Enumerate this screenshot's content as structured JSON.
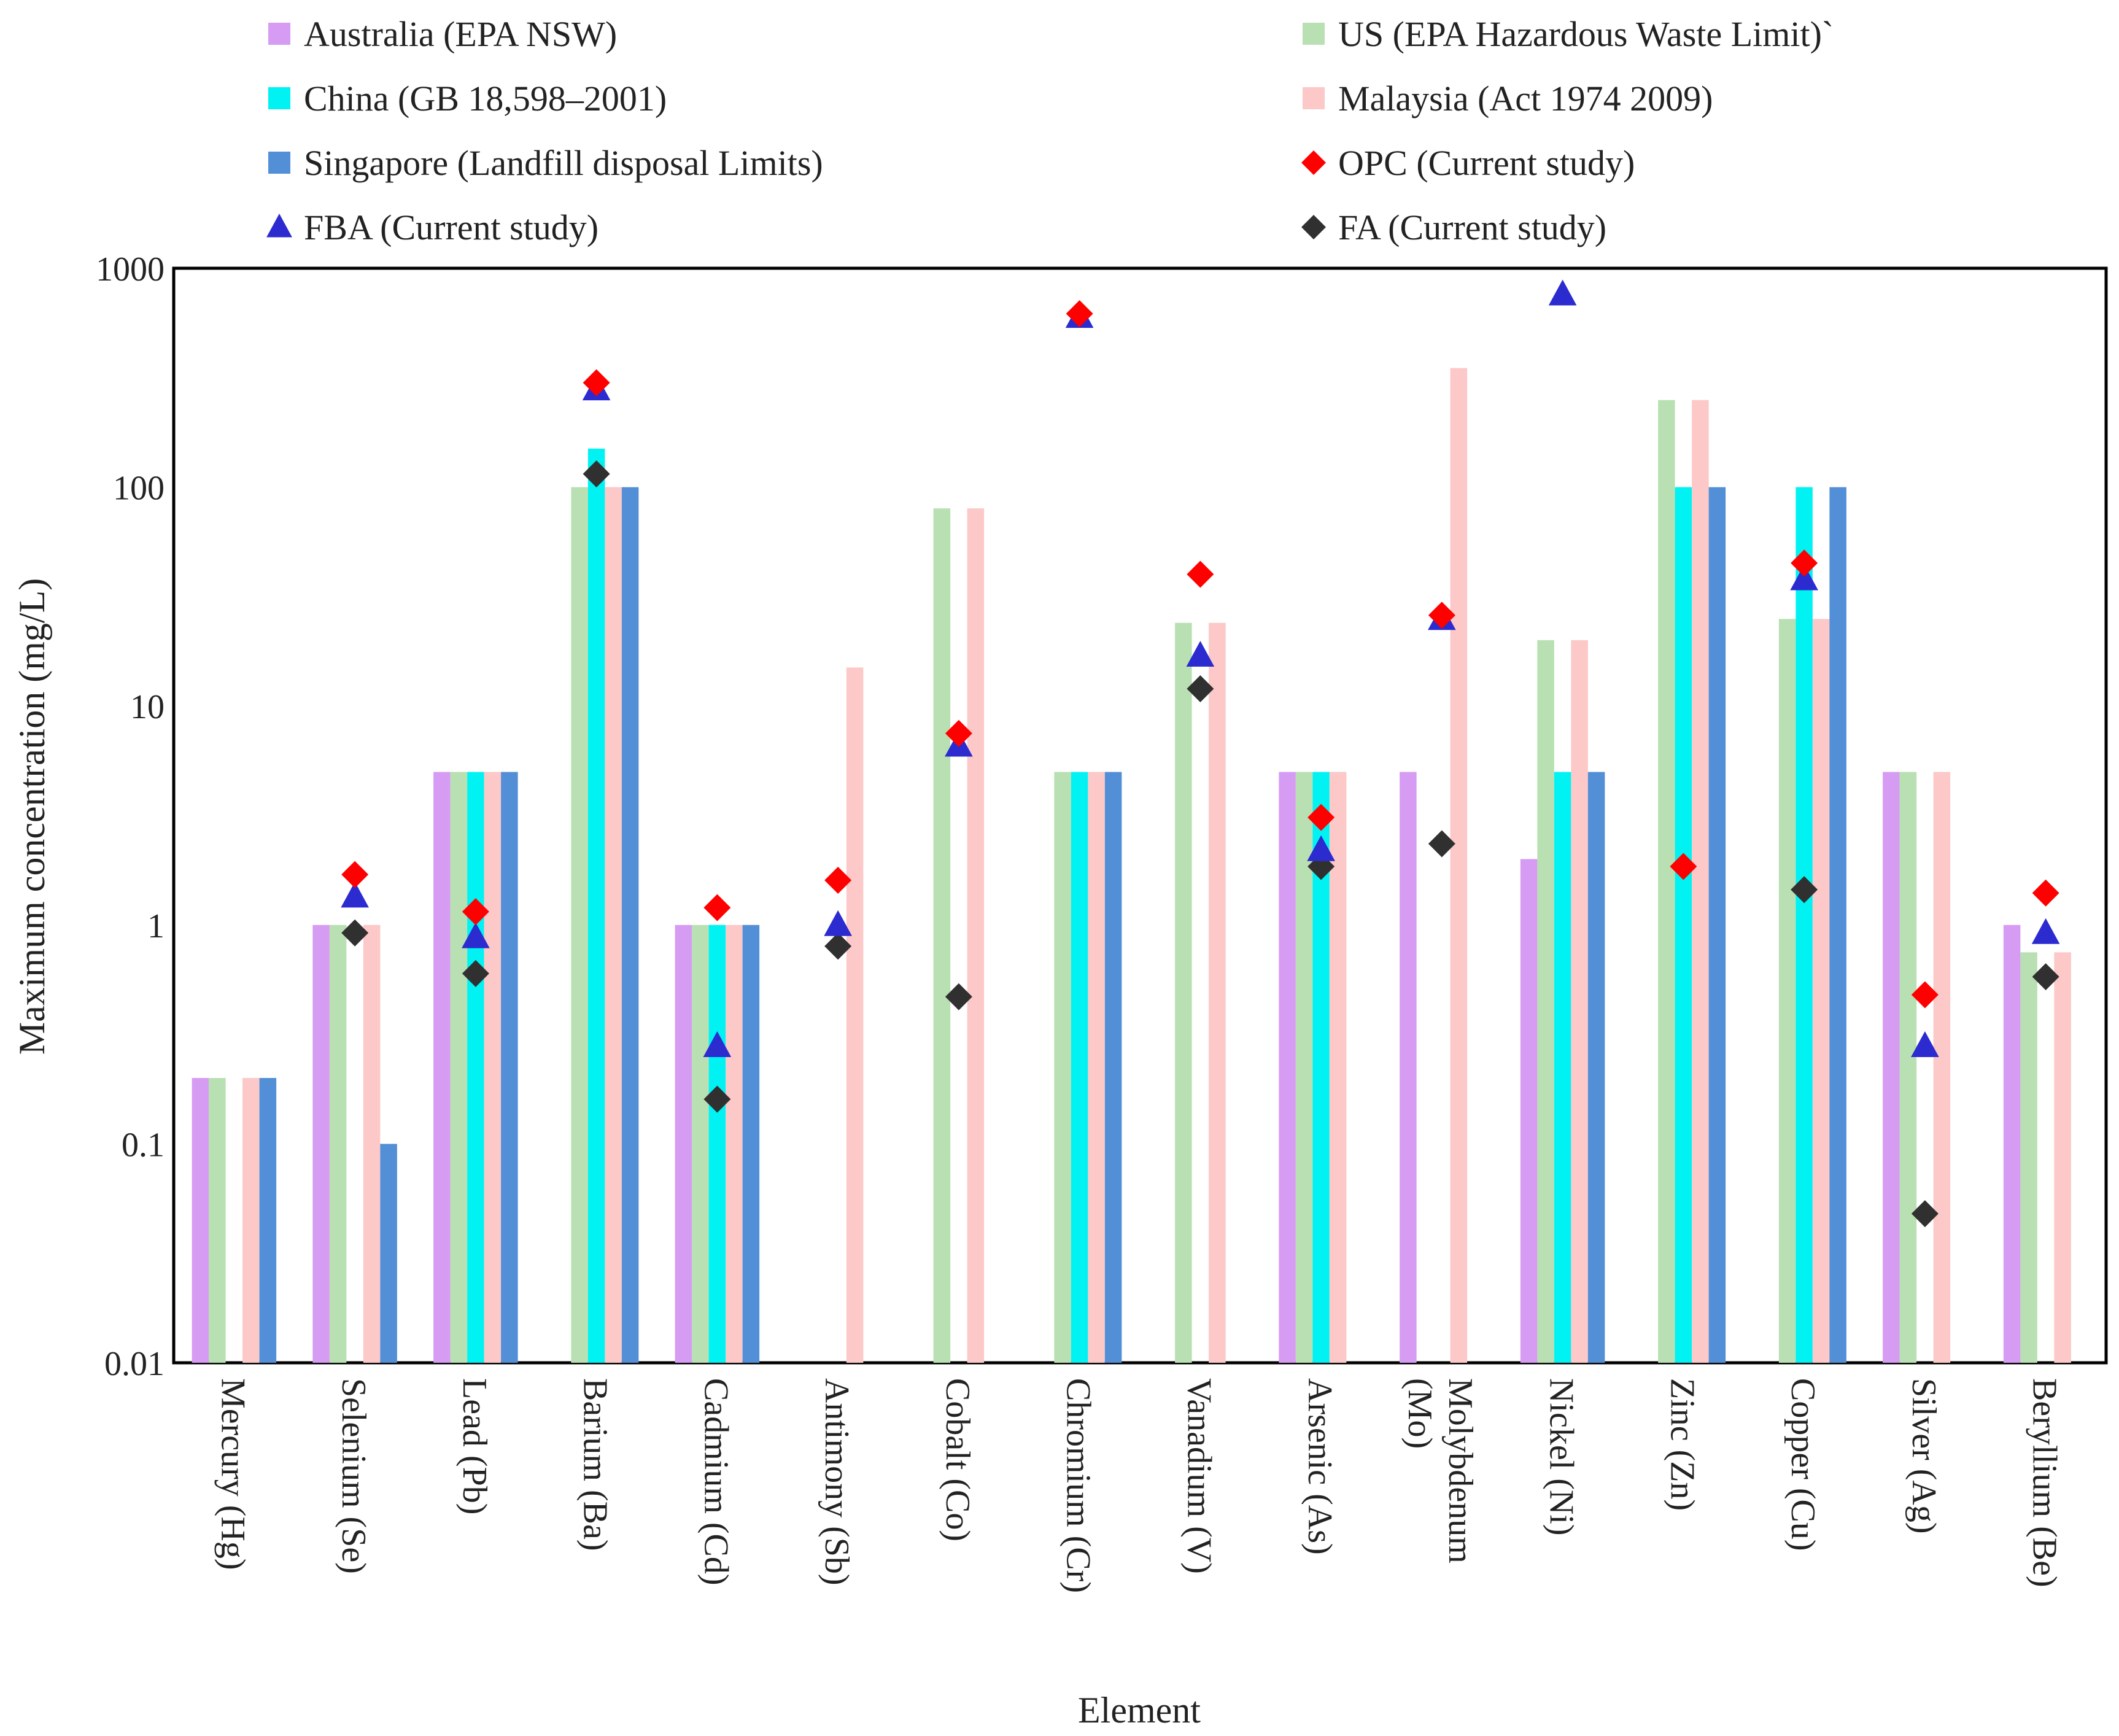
{
  "chart_data": {
    "type": "bar",
    "title": "",
    "xlabel": "Element",
    "ylabel": "Maximum concentration (mg/L)",
    "yscale": "log",
    "ylim": [
      0.01,
      1000
    ],
    "yticks": [
      "0.01",
      "0.1",
      "1",
      "10",
      "100",
      "1000"
    ],
    "categories": [
      "Mercury (Hg)",
      "Selenium (Se)",
      "Lead (Pb)",
      "Barium (Ba)",
      "Cadmium (Cd)",
      "Antimony (Sb)",
      "Cobalt (Co)",
      "Chromium (Cr)",
      "Vanadium (V)",
      "Arsenic (As)",
      "Molybdenum (Mo)",
      "Nickel (Ni)",
      "Zinc (Zn)",
      "Copper (Cu)",
      "Silver (Ag)",
      "Beryllium (Be)"
    ],
    "series": [
      {
        "name": "Australia (EPA NSW)",
        "kind": "bar",
        "color": "#d69bf3",
        "values": [
          0.2,
          1,
          5,
          null,
          1,
          null,
          null,
          null,
          null,
          5,
          5,
          2,
          null,
          null,
          5,
          1
        ]
      },
      {
        "name": "US (EPA Hazardous Waste Limit)`",
        "kind": "bar",
        "color": "#b9e0b2",
        "values": [
          0.2,
          1,
          5,
          100,
          1,
          null,
          80,
          5,
          24,
          5,
          null,
          20,
          250,
          25,
          5,
          0.75
        ]
      },
      {
        "name": "China (GB 18,598–2001)",
        "kind": "bar",
        "color": "#00f2f2",
        "values": [
          null,
          null,
          5,
          150,
          1,
          null,
          null,
          5,
          null,
          5,
          null,
          5,
          100,
          100,
          null,
          null
        ]
      },
      {
        "name": "Malaysia (Act 1974 2009)",
        "kind": "bar",
        "color": "#fcc8c8",
        "values": [
          0.2,
          1,
          5,
          100,
          1,
          15,
          80,
          5,
          24,
          5,
          350,
          20,
          250,
          25,
          5,
          0.75
        ]
      },
      {
        "name": "Singapore (Landfill disposal Limits)",
        "kind": "bar",
        "color": "#538fd7",
        "values": [
          0.2,
          0.1,
          5,
          100,
          1,
          null,
          null,
          5,
          null,
          null,
          null,
          5,
          100,
          100,
          null,
          null
        ]
      },
      {
        "name": "OPC (Current study)",
        "kind": "marker",
        "marker": "diamond",
        "color": "#ff0000",
        "values": [
          null,
          1.7,
          1.15,
          300,
          1.2,
          1.6,
          7.5,
          620,
          40,
          3.1,
          26,
          null,
          1.85,
          45,
          0.48,
          1.4
        ]
      },
      {
        "name": "FBA (Current study)",
        "kind": "marker",
        "marker": "triangle",
        "color": "#2b2bd0",
        "values": [
          null,
          1.35,
          0.88,
          280,
          0.28,
          1.0,
          6.6,
          600,
          17,
          2.2,
          25,
          760,
          null,
          38,
          0.28,
          0.92
        ]
      },
      {
        "name": "FA (Current study)",
        "kind": "marker",
        "marker": "diamond",
        "color": "#303030",
        "values": [
          null,
          0.92,
          0.6,
          115,
          0.16,
          0.8,
          0.47,
          null,
          12,
          1.85,
          2.35,
          null,
          null,
          1.45,
          0.048,
          0.58
        ]
      }
    ],
    "legend": "top, two columns",
    "grid": false
  }
}
